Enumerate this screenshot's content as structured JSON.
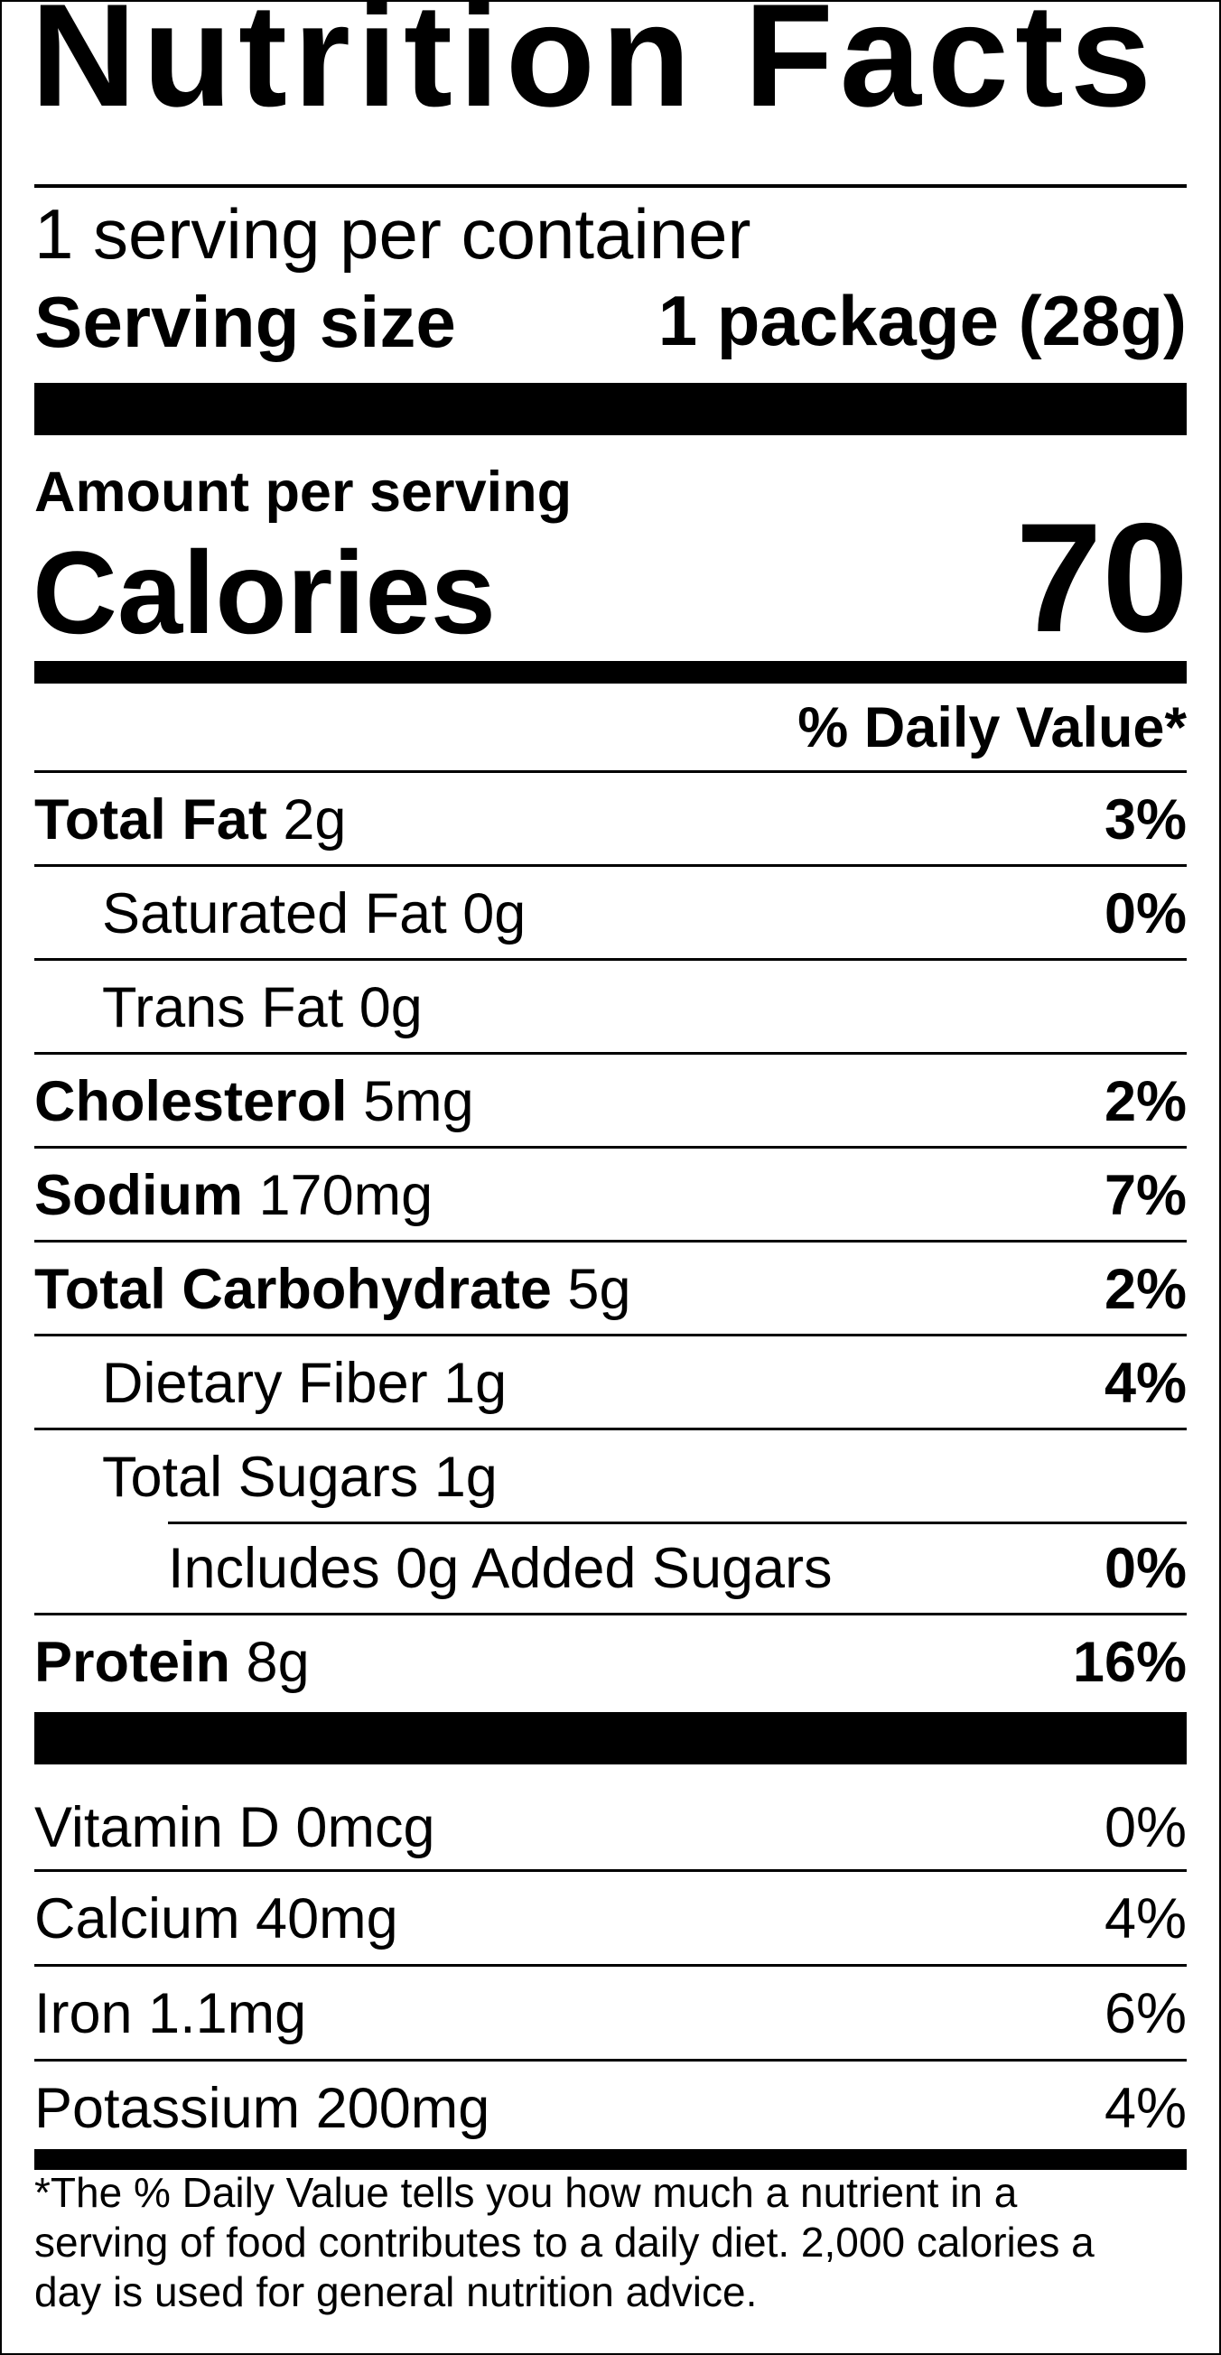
{
  "title": "Nutrition Facts",
  "servings_per_container": "1 serving per container",
  "serving_size_label": "Serving size",
  "serving_size_value": "1 package (28g)",
  "amount_per_serving": "Amount per serving",
  "calories_label": "Calories",
  "calories_value": "70",
  "daily_value_header": "% Daily Value*",
  "nutrients": [
    {
      "name": "Total Fat",
      "amount": "2g",
      "dv": "3%"
    },
    {
      "name": "Saturated Fat",
      "amount": "0g",
      "dv": "0%"
    },
    {
      "name": "Trans Fat",
      "amount": "0g",
      "dv": ""
    },
    {
      "name": "Cholesterol",
      "amount": "5mg",
      "dv": "2%"
    },
    {
      "name": "Sodium",
      "amount": "170mg",
      "dv": "7%"
    },
    {
      "name": "Total Carbohydrate",
      "amount": "5g",
      "dv": "2%"
    },
    {
      "name": "Dietary Fiber",
      "amount": "1g",
      "dv": "4%"
    },
    {
      "name": "Total Sugars",
      "amount": "1g",
      "dv": ""
    },
    {
      "name": "Includes 0g Added Sugars",
      "amount": "",
      "dv": "0%"
    },
    {
      "name": "Protein",
      "amount": "8g",
      "dv": "16%"
    }
  ],
  "vitamins": [
    {
      "text": "Vitamin D 0mcg",
      "dv": "0%"
    },
    {
      "text": "Calcium 40mg",
      "dv": "4%"
    },
    {
      "text": "Iron 1.1mg",
      "dv": "6%"
    },
    {
      "text": "Potassium 200mg",
      "dv": "4%"
    }
  ],
  "footnote_lines": [
    "*The % Daily Value tells you how much a nutrient in a",
    "serving of food contributes to a daily diet. 2,000 calories a",
    "day is used for general nutrition advice."
  ]
}
